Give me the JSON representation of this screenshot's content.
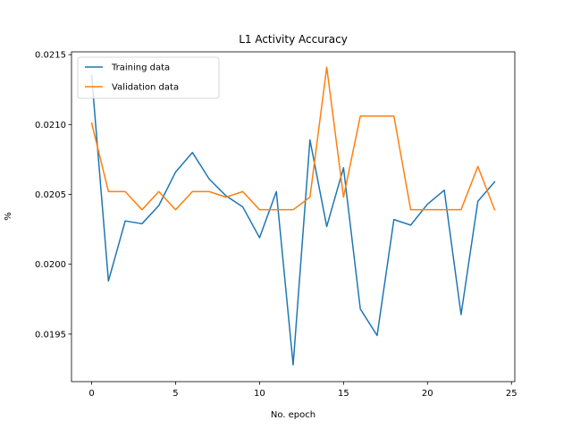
{
  "chart_data": {
    "type": "line",
    "title": "L1 Activity Accuracy",
    "xlabel": "No. epoch",
    "ylabel": "%",
    "xlim": [
      -1.2,
      25.2
    ],
    "ylim": [
      0.01916,
      0.02152
    ],
    "xticks": [
      0,
      5,
      10,
      15,
      20,
      25
    ],
    "yticks": [
      0.0195,
      0.02,
      0.0205,
      0.021,
      0.0215
    ],
    "ytick_labels": [
      "0.0195",
      "0.0200",
      "0.0205",
      "0.0210",
      "0.0215"
    ],
    "grid": false,
    "legend_position": "top-left",
    "x": [
      0,
      1,
      2,
      3,
      4,
      5,
      6,
      7,
      8,
      9,
      10,
      11,
      12,
      13,
      14,
      15,
      16,
      17,
      18,
      19,
      20,
      21,
      22,
      23,
      24
    ],
    "series": [
      {
        "name": "Training data",
        "color": "#1f77b4",
        "values": [
          0.02135,
          0.01988,
          0.02031,
          0.02029,
          0.02042,
          0.02066,
          0.0208,
          0.02061,
          0.02049,
          0.02041,
          0.02019,
          0.02052,
          0.01928,
          0.02089,
          0.02027,
          0.02069,
          0.01968,
          0.01949,
          0.02032,
          0.02028,
          0.02043,
          0.02053,
          0.01964,
          0.02045,
          0.02059
        ]
      },
      {
        "name": "Validation data",
        "color": "#ff7f0e",
        "values": [
          0.02101,
          0.02052,
          0.02052,
          0.02039,
          0.02052,
          0.02039,
          0.02052,
          0.02052,
          0.02048,
          0.02052,
          0.02039,
          0.02039,
          0.02039,
          0.02048,
          0.02141,
          0.02048,
          0.02106,
          0.02106,
          0.02106,
          0.02039,
          0.02039,
          0.02039,
          0.02039,
          0.0207,
          0.02039
        ]
      }
    ]
  }
}
